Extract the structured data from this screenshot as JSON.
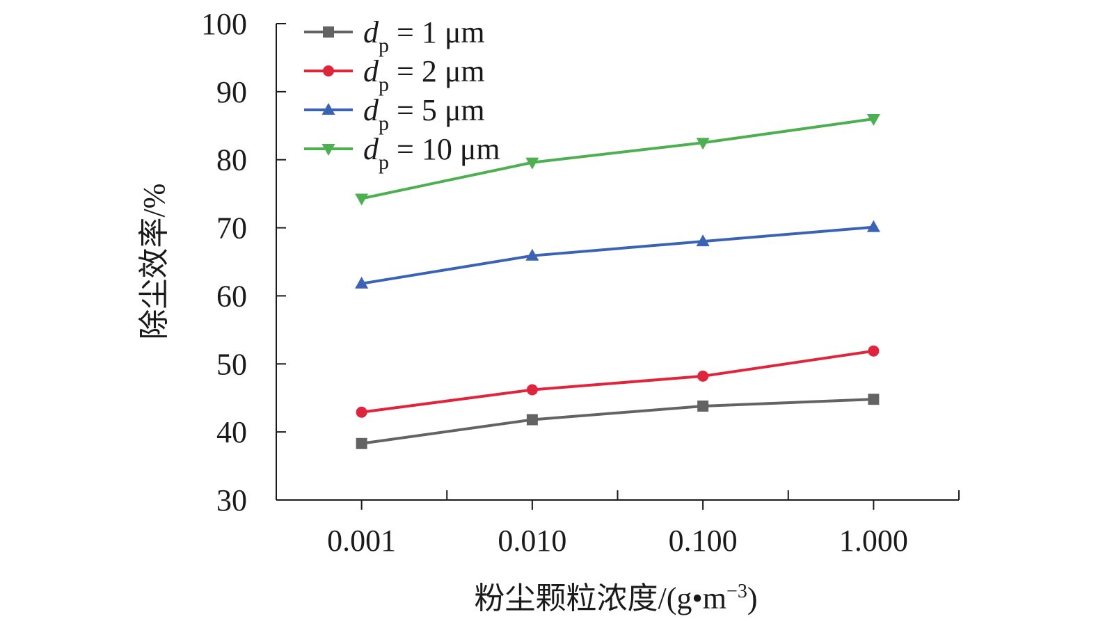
{
  "chart_data": {
    "type": "line",
    "title": "",
    "xlabel": "粉尘颗粒浓度/(g•m",
    "xlabel_sup": "−3",
    "xlabel_close": ")",
    "ylabel": "除尘效率/%",
    "categories": [
      "0.001",
      "0.010",
      "0.100",
      "1.000"
    ],
    "ylim": [
      30,
      100
    ],
    "yticks": [
      "30",
      "40",
      "50",
      "60",
      "70",
      "80",
      "90",
      "100"
    ],
    "grid": false,
    "legend_position": "top-left",
    "series": [
      {
        "name": "dp = 1 μm",
        "var": "d",
        "sub": "p",
        "rest": " = 1 μm",
        "color": "#636363",
        "marker": "square",
        "values": [
          38.3,
          41.8,
          43.8,
          44.8
        ]
      },
      {
        "name": "dp = 2 μm",
        "var": "d",
        "sub": "p",
        "rest": " = 2 μm",
        "color": "#e0243c",
        "marker": "circle",
        "values": [
          42.9,
          46.2,
          48.2,
          51.9
        ]
      },
      {
        "name": "dp = 5 μm",
        "var": "d",
        "sub": "p",
        "rest": " = 5 μm",
        "color": "#3a62b5",
        "marker": "triangle-up",
        "values": [
          61.8,
          65.9,
          68.0,
          70.1
        ]
      },
      {
        "name": "dp = 10 μm",
        "var": "d",
        "sub": "p",
        "rest": " = 10 μm",
        "color": "#4caf50",
        "marker": "triangle-down",
        "values": [
          74.3,
          79.6,
          82.5,
          86.0
        ]
      }
    ]
  }
}
